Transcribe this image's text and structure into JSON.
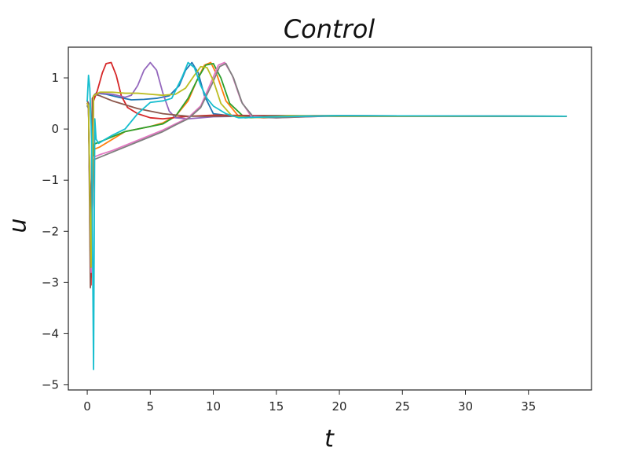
{
  "chart_data": {
    "type": "line",
    "title": "Control",
    "xlabel": "t",
    "ylabel": "u",
    "xlim": [
      -1.5,
      40
    ],
    "ylim": [
      -5.1,
      1.6
    ],
    "xticks": [
      0,
      5,
      10,
      15,
      20,
      25,
      30,
      35
    ],
    "yticks": [
      1,
      0,
      -1,
      -2,
      -3,
      -4,
      -5
    ],
    "xtick_labels": [
      "0",
      "5",
      "10",
      "15",
      "20",
      "25",
      "30",
      "35"
    ],
    "ytick_labels": [
      "1",
      "0",
      "−1",
      "−2",
      "−3",
      "−4",
      "−5"
    ],
    "grid": false,
    "series": [
      {
        "color": "#1f77b4",
        "x": [
          0.0,
          0.1,
          0.3,
          0.5,
          0.7,
          1.5,
          2.5,
          3.5,
          4.5,
          5.5,
          6.5,
          7.3,
          7.8,
          8.3,
          8.8,
          9.3,
          10.0,
          12.0,
          15.0,
          20.0,
          30.0,
          38.0
        ],
        "y": [
          0.55,
          0.5,
          -2.9,
          0.6,
          0.7,
          0.68,
          0.62,
          0.57,
          0.58,
          0.6,
          0.65,
          0.85,
          1.15,
          1.3,
          1.1,
          0.65,
          0.3,
          0.24,
          0.26,
          0.26,
          0.25,
          0.25
        ]
      },
      {
        "color": "#ff7f0e",
        "x": [
          0.0,
          0.1,
          0.3,
          0.5,
          1.0,
          2.0,
          3.0,
          4.0,
          5.0,
          6.0,
          7.0,
          8.0,
          8.7,
          9.3,
          9.8,
          10.3,
          11.0,
          12.0,
          14.0,
          18.0,
          25.0,
          38.0
        ],
        "y": [
          0.5,
          0.45,
          -2.8,
          -0.4,
          -0.35,
          -0.2,
          -0.05,
          0.0,
          0.05,
          0.12,
          0.25,
          0.55,
          0.95,
          1.25,
          1.3,
          1.05,
          0.55,
          0.25,
          0.22,
          0.26,
          0.25,
          0.25
        ]
      },
      {
        "color": "#2ca02c",
        "x": [
          0.0,
          0.1,
          0.3,
          0.5,
          1.0,
          2.0,
          3.0,
          4.0,
          5.0,
          6.0,
          7.0,
          8.0,
          8.8,
          9.4,
          10.0,
          10.6,
          11.3,
          12.5,
          15.0,
          20.0,
          38.0
        ],
        "y": [
          0.5,
          0.45,
          -2.9,
          -0.3,
          -0.25,
          -0.15,
          -0.05,
          0.0,
          0.05,
          0.1,
          0.25,
          0.6,
          1.0,
          1.25,
          1.28,
          1.0,
          0.5,
          0.22,
          0.25,
          0.26,
          0.25
        ]
      },
      {
        "color": "#d62728",
        "x": [
          0.0,
          0.1,
          0.3,
          0.5,
          0.8,
          1.2,
          1.5,
          1.9,
          2.3,
          2.7,
          3.2,
          4.0,
          5.0,
          6.0,
          8.0,
          10.0,
          15.0,
          20.0,
          38.0
        ],
        "y": [
          0.5,
          0.45,
          -3.05,
          0.55,
          0.75,
          1.1,
          1.28,
          1.3,
          1.05,
          0.65,
          0.42,
          0.3,
          0.22,
          0.2,
          0.25,
          0.27,
          0.26,
          0.25,
          0.25
        ]
      },
      {
        "color": "#9467bd",
        "x": [
          0.0,
          0.1,
          0.3,
          0.5,
          1.0,
          2.0,
          3.0,
          3.5,
          4.0,
          4.5,
          5.0,
          5.5,
          6.0,
          6.5,
          7.0,
          8.0,
          10.0,
          15.0,
          20.0,
          38.0
        ],
        "y": [
          0.55,
          0.5,
          -2.8,
          0.65,
          0.7,
          0.68,
          0.62,
          0.66,
          0.85,
          1.15,
          1.3,
          1.15,
          0.7,
          0.35,
          0.22,
          0.2,
          0.24,
          0.26,
          0.25,
          0.25
        ]
      },
      {
        "color": "#8c564b",
        "x": [
          0.0,
          0.1,
          0.25,
          0.4,
          0.6,
          1.0,
          2.0,
          4.0,
          6.0,
          8.0,
          10.0,
          15.0,
          20.0,
          38.0
        ],
        "y": [
          0.55,
          0.5,
          -3.1,
          0.6,
          0.68,
          0.65,
          0.55,
          0.4,
          0.3,
          0.25,
          0.25,
          0.26,
          0.25,
          0.25
        ]
      },
      {
        "color": "#e377c2",
        "x": [
          0.0,
          0.1,
          0.3,
          0.5,
          1.0,
          2.0,
          3.0,
          4.0,
          5.0,
          6.0,
          7.0,
          8.0,
          9.0,
          9.8,
          10.4,
          10.9,
          11.5,
          12.2,
          13.0,
          15.0,
          20.0,
          38.0
        ],
        "y": [
          0.5,
          0.45,
          -2.8,
          -0.55,
          -0.5,
          -0.42,
          -0.32,
          -0.22,
          -0.12,
          -0.02,
          0.1,
          0.22,
          0.45,
          0.9,
          1.25,
          1.3,
          1.05,
          0.55,
          0.25,
          0.22,
          0.26,
          0.25
        ]
      },
      {
        "color": "#7f7f7f",
        "x": [
          0.0,
          0.1,
          0.3,
          0.5,
          1.0,
          2.0,
          3.0,
          4.0,
          5.0,
          6.0,
          7.0,
          8.0,
          9.0,
          9.9,
          10.5,
          11.0,
          11.6,
          12.3,
          13.2,
          15.0,
          20.0,
          38.0
        ],
        "y": [
          0.45,
          0.4,
          -2.7,
          -0.6,
          -0.55,
          -0.45,
          -0.35,
          -0.25,
          -0.15,
          -0.05,
          0.08,
          0.2,
          0.42,
          0.88,
          1.22,
          1.28,
          1.0,
          0.5,
          0.23,
          0.22,
          0.26,
          0.25
        ]
      },
      {
        "color": "#bcbd22",
        "x": [
          0.0,
          0.1,
          0.3,
          0.5,
          1.0,
          2.0,
          3.0,
          4.0,
          5.0,
          6.0,
          7.0,
          7.8,
          8.5,
          9.0,
          9.5,
          10.0,
          10.6,
          11.5,
          13.0,
          16.0,
          20.0,
          38.0
        ],
        "y": [
          0.5,
          0.45,
          -2.7,
          0.65,
          0.72,
          0.72,
          0.7,
          0.7,
          0.68,
          0.66,
          0.68,
          0.8,
          1.05,
          1.22,
          1.2,
          0.95,
          0.5,
          0.25,
          0.22,
          0.26,
          0.25,
          0.25
        ]
      },
      {
        "color": "#17becf",
        "x": [
          0.0,
          0.1,
          0.2,
          0.35,
          0.5,
          0.6,
          0.7,
          0.9,
          1.3,
          2.0,
          3.0,
          4.0,
          5.0,
          6.0,
          6.7,
          7.5,
          8.0,
          8.5,
          9.0,
          9.5,
          10.0,
          11.0,
          12.0,
          15.0,
          20.0,
          38.0
        ],
        "y": [
          0.55,
          1.05,
          0.8,
          -0.2,
          -4.7,
          0.2,
          -0.2,
          -0.28,
          -0.22,
          -0.12,
          0.0,
          0.3,
          0.52,
          0.55,
          0.6,
          1.0,
          1.3,
          1.2,
          0.85,
          0.6,
          0.45,
          0.3,
          0.22,
          0.24,
          0.26,
          0.25
        ]
      }
    ]
  }
}
